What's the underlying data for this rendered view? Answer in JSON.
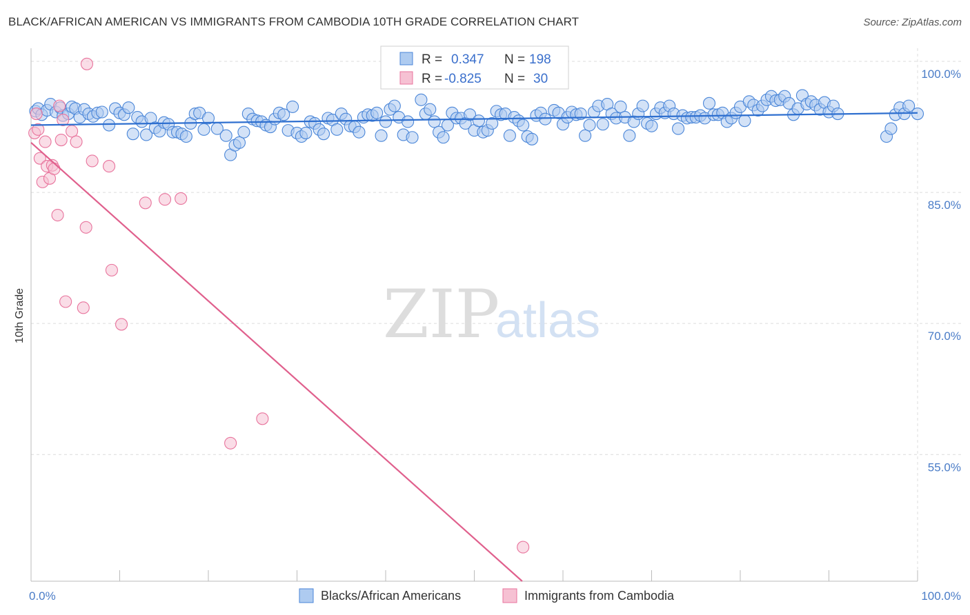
{
  "header": {
    "title": "BLACK/AFRICAN AMERICAN VS IMMIGRANTS FROM CAMBODIA 10TH GRADE CORRELATION CHART",
    "source": "Source: ZipAtlas.com"
  },
  "watermark": {
    "zip": "ZIP",
    "atlas": "atlas"
  },
  "colors": {
    "blue": "#4a86d8",
    "blue_fill": "#aecbf0",
    "blue_line": "#2e6fcf",
    "pink": "#e8739c",
    "pink_fill": "#f6c1d3",
    "pink_line": "#e0608d",
    "axis_text": "#4a7cc7",
    "grid": "#dcdcdc"
  },
  "stats": {
    "blue": {
      "r_label": "R =",
      "r_value": "0.347",
      "n_label": "N =",
      "n_value": "198"
    },
    "pink": {
      "r_label": "R =",
      "r_value": "-0.825",
      "n_label": "N =",
      "n_value": "30"
    }
  },
  "chart_data": {
    "type": "scatter",
    "title": "BLACK/AFRICAN AMERICAN VS IMMIGRANTS FROM CAMBODIA 10TH GRADE CORRELATION CHART",
    "xlabel": "",
    "ylabel": "10th Grade",
    "xlim": [
      0,
      100
    ],
    "ylim": [
      40.5,
      101.5
    ],
    "x_ticks": [
      "0.0%",
      "100.0%"
    ],
    "y_ticks": [
      {
        "value": 100,
        "label": "100.0%"
      },
      {
        "value": 85,
        "label": "85.0%"
      },
      {
        "value": 70,
        "label": "70.0%"
      },
      {
        "value": 55,
        "label": "55.0%"
      }
    ],
    "grid": true,
    "legend_position": "bottom-center",
    "series": [
      {
        "name": "Blacks/African Americans",
        "color": "#4a86d8",
        "trend": {
          "x": [
            0,
            100
          ],
          "y": [
            92.7,
            94.1
          ]
        },
        "points": [
          [
            0.5,
            94.3
          ],
          [
            0.8,
            94.6
          ],
          [
            1.2,
            93.9
          ],
          [
            1.8,
            94.4
          ],
          [
            2.2,
            95.1
          ],
          [
            2.8,
            94.2
          ],
          [
            3.3,
            94.7
          ],
          [
            3.6,
            93.8
          ],
          [
            4.2,
            94.0
          ],
          [
            4.6,
            94.8
          ],
          [
            5.0,
            94.6
          ],
          [
            5.5,
            93.6
          ],
          [
            6.0,
            94.5
          ],
          [
            6.5,
            94.0
          ],
          [
            7.0,
            93.7
          ],
          [
            7.5,
            94.1
          ],
          [
            8.0,
            94.2
          ],
          [
            8.8,
            92.7
          ],
          [
            9.5,
            94.6
          ],
          [
            10.0,
            94.1
          ],
          [
            10.5,
            93.9
          ],
          [
            11.0,
            94.7
          ],
          [
            11.5,
            91.7
          ],
          [
            12.0,
            93.6
          ],
          [
            12.5,
            93.1
          ],
          [
            13.0,
            91.6
          ],
          [
            13.5,
            93.5
          ],
          [
            14.0,
            92.4
          ],
          [
            14.5,
            92.0
          ],
          [
            15.0,
            93.0
          ],
          [
            15.5,
            92.8
          ],
          [
            16.0,
            91.9
          ],
          [
            16.5,
            91.9
          ],
          [
            17.0,
            91.7
          ],
          [
            17.5,
            91.4
          ],
          [
            18.0,
            92.9
          ],
          [
            18.5,
            94.0
          ],
          [
            19.0,
            94.1
          ],
          [
            19.5,
            92.2
          ],
          [
            20.0,
            93.5
          ],
          [
            21.0,
            92.3
          ],
          [
            22.0,
            91.5
          ],
          [
            22.5,
            89.3
          ],
          [
            23.0,
            90.4
          ],
          [
            23.5,
            90.7
          ],
          [
            24.0,
            91.9
          ],
          [
            24.5,
            94.0
          ],
          [
            25.0,
            93.4
          ],
          [
            25.5,
            93.2
          ],
          [
            26.0,
            93.1
          ],
          [
            26.5,
            92.7
          ],
          [
            27.0,
            92.5
          ],
          [
            27.5,
            93.4
          ],
          [
            28.0,
            94.1
          ],
          [
            28.5,
            93.9
          ],
          [
            29.0,
            92.1
          ],
          [
            29.5,
            94.8
          ],
          [
            30.0,
            91.8
          ],
          [
            30.5,
            91.4
          ],
          [
            31.0,
            91.8
          ],
          [
            31.5,
            93.1
          ],
          [
            32.0,
            92.9
          ],
          [
            32.5,
            92.2
          ],
          [
            33.0,
            91.7
          ],
          [
            33.5,
            93.5
          ],
          [
            34.0,
            93.3
          ],
          [
            34.5,
            92.2
          ],
          [
            35.0,
            94.0
          ],
          [
            35.5,
            93.4
          ],
          [
            36.0,
            92.6
          ],
          [
            36.5,
            92.5
          ],
          [
            37.0,
            91.9
          ],
          [
            37.5,
            93.6
          ],
          [
            38.0,
            93.9
          ],
          [
            38.5,
            93.8
          ],
          [
            39.0,
            94.1
          ],
          [
            39.5,
            91.5
          ],
          [
            40.0,
            93.1
          ],
          [
            40.5,
            94.5
          ],
          [
            41.0,
            94.9
          ],
          [
            41.5,
            93.6
          ],
          [
            42.0,
            91.6
          ],
          [
            42.5,
            93.1
          ],
          [
            43.0,
            91.3
          ],
          [
            44.0,
            95.6
          ],
          [
            44.5,
            94.0
          ],
          [
            45.0,
            94.5
          ],
          [
            45.5,
            93.1
          ],
          [
            46.0,
            91.9
          ],
          [
            46.5,
            91.3
          ],
          [
            47.0,
            92.7
          ],
          [
            47.5,
            94.1
          ],
          [
            48.0,
            93.5
          ],
          [
            48.5,
            93.5
          ],
          [
            49.0,
            92.9
          ],
          [
            49.5,
            93.9
          ],
          [
            50.0,
            92.1
          ],
          [
            50.5,
            93.2
          ],
          [
            51.0,
            91.9
          ],
          [
            51.5,
            92.1
          ],
          [
            52.0,
            92.9
          ],
          [
            52.5,
            94.3
          ],
          [
            53.0,
            93.9
          ],
          [
            53.5,
            94.0
          ],
          [
            54.0,
            91.5
          ],
          [
            54.5,
            93.6
          ],
          [
            55.0,
            93.2
          ],
          [
            55.5,
            92.7
          ],
          [
            56.0,
            91.4
          ],
          [
            56.5,
            91.1
          ],
          [
            57.0,
            93.8
          ],
          [
            57.5,
            94.1
          ],
          [
            58.0,
            93.4
          ],
          [
            59.0,
            94.4
          ],
          [
            59.5,
            94.1
          ],
          [
            60.0,
            92.8
          ],
          [
            60.5,
            93.6
          ],
          [
            61.0,
            94.2
          ],
          [
            61.5,
            93.9
          ],
          [
            62.0,
            94.0
          ],
          [
            62.5,
            91.5
          ],
          [
            63.0,
            92.7
          ],
          [
            63.5,
            94.2
          ],
          [
            64.0,
            94.9
          ],
          [
            64.5,
            92.8
          ],
          [
            65.0,
            95.1
          ],
          [
            65.5,
            94.0
          ],
          [
            66.0,
            93.5
          ],
          [
            66.5,
            94.8
          ],
          [
            67.0,
            93.6
          ],
          [
            67.5,
            91.5
          ],
          [
            68.0,
            93.1
          ],
          [
            68.5,
            94.0
          ],
          [
            69.0,
            94.9
          ],
          [
            69.5,
            92.9
          ],
          [
            70.0,
            92.6
          ],
          [
            70.5,
            94.0
          ],
          [
            71.0,
            94.7
          ],
          [
            71.5,
            94.1
          ],
          [
            72.0,
            94.9
          ],
          [
            72.5,
            94.0
          ],
          [
            73.0,
            92.3
          ],
          [
            73.5,
            93.8
          ],
          [
            74.0,
            93.5
          ],
          [
            74.5,
            93.6
          ],
          [
            75.0,
            93.6
          ],
          [
            75.5,
            93.8
          ],
          [
            76.0,
            93.5
          ],
          [
            76.5,
            95.2
          ],
          [
            77.0,
            93.9
          ],
          [
            77.5,
            93.9
          ],
          [
            78.0,
            94.1
          ],
          [
            78.5,
            93.1
          ],
          [
            79.0,
            93.5
          ],
          [
            79.5,
            94.1
          ],
          [
            80.0,
            94.8
          ],
          [
            80.5,
            93.2
          ],
          [
            81.0,
            95.4
          ],
          [
            81.5,
            95.0
          ],
          [
            82.0,
            94.4
          ],
          [
            82.5,
            94.9
          ],
          [
            83.0,
            95.6
          ],
          [
            83.5,
            96.0
          ],
          [
            84.0,
            95.5
          ],
          [
            84.5,
            95.6
          ],
          [
            85.0,
            96.0
          ],
          [
            85.5,
            95.2
          ],
          [
            86.0,
            93.9
          ],
          [
            86.5,
            94.6
          ],
          [
            87.0,
            96.1
          ],
          [
            87.5,
            95.1
          ],
          [
            88.0,
            95.4
          ],
          [
            88.5,
            95.0
          ],
          [
            89.0,
            94.5
          ],
          [
            89.5,
            95.3
          ],
          [
            90.0,
            94.2
          ],
          [
            90.5,
            94.9
          ],
          [
            91.0,
            94.0
          ],
          [
            96.5,
            91.4
          ],
          [
            97.0,
            92.3
          ],
          [
            97.5,
            93.9
          ],
          [
            98.0,
            94.7
          ],
          [
            98.5,
            94.0
          ],
          [
            99.0,
            94.9
          ],
          [
            100.0,
            94.0
          ]
        ]
      },
      {
        "name": "Immigrants from Cambodia",
        "color": "#e8739c",
        "trend": {
          "x": [
            0,
            55.4
          ],
          "y": [
            90.7,
            40.5
          ]
        },
        "points": [
          [
            0.4,
            91.8
          ],
          [
            0.6,
            94.0
          ],
          [
            0.8,
            92.2
          ],
          [
            1.0,
            88.9
          ],
          [
            1.3,
            86.2
          ],
          [
            1.6,
            90.8
          ],
          [
            1.8,
            88.0
          ],
          [
            2.1,
            86.6
          ],
          [
            2.4,
            88.1
          ],
          [
            2.6,
            87.7
          ],
          [
            3.0,
            82.4
          ],
          [
            3.2,
            94.9
          ],
          [
            3.4,
            91.0
          ],
          [
            3.6,
            93.3
          ],
          [
            3.9,
            72.5
          ],
          [
            4.6,
            92.0
          ],
          [
            5.1,
            90.8
          ],
          [
            5.9,
            71.8
          ],
          [
            6.2,
            81.0
          ],
          [
            6.9,
            88.6
          ],
          [
            8.8,
            88.0
          ],
          [
            9.1,
            76.1
          ],
          [
            10.2,
            69.9
          ],
          [
            12.9,
            83.8
          ],
          [
            15.1,
            84.2
          ],
          [
            16.9,
            84.3
          ],
          [
            22.5,
            56.3
          ],
          [
            26.1,
            59.1
          ],
          [
            55.5,
            44.4
          ],
          [
            6.3,
            99.7
          ]
        ]
      }
    ]
  },
  "legend": {
    "items": [
      {
        "label": "Blacks/African Americans"
      },
      {
        "label": "Immigrants from Cambodia"
      }
    ]
  }
}
